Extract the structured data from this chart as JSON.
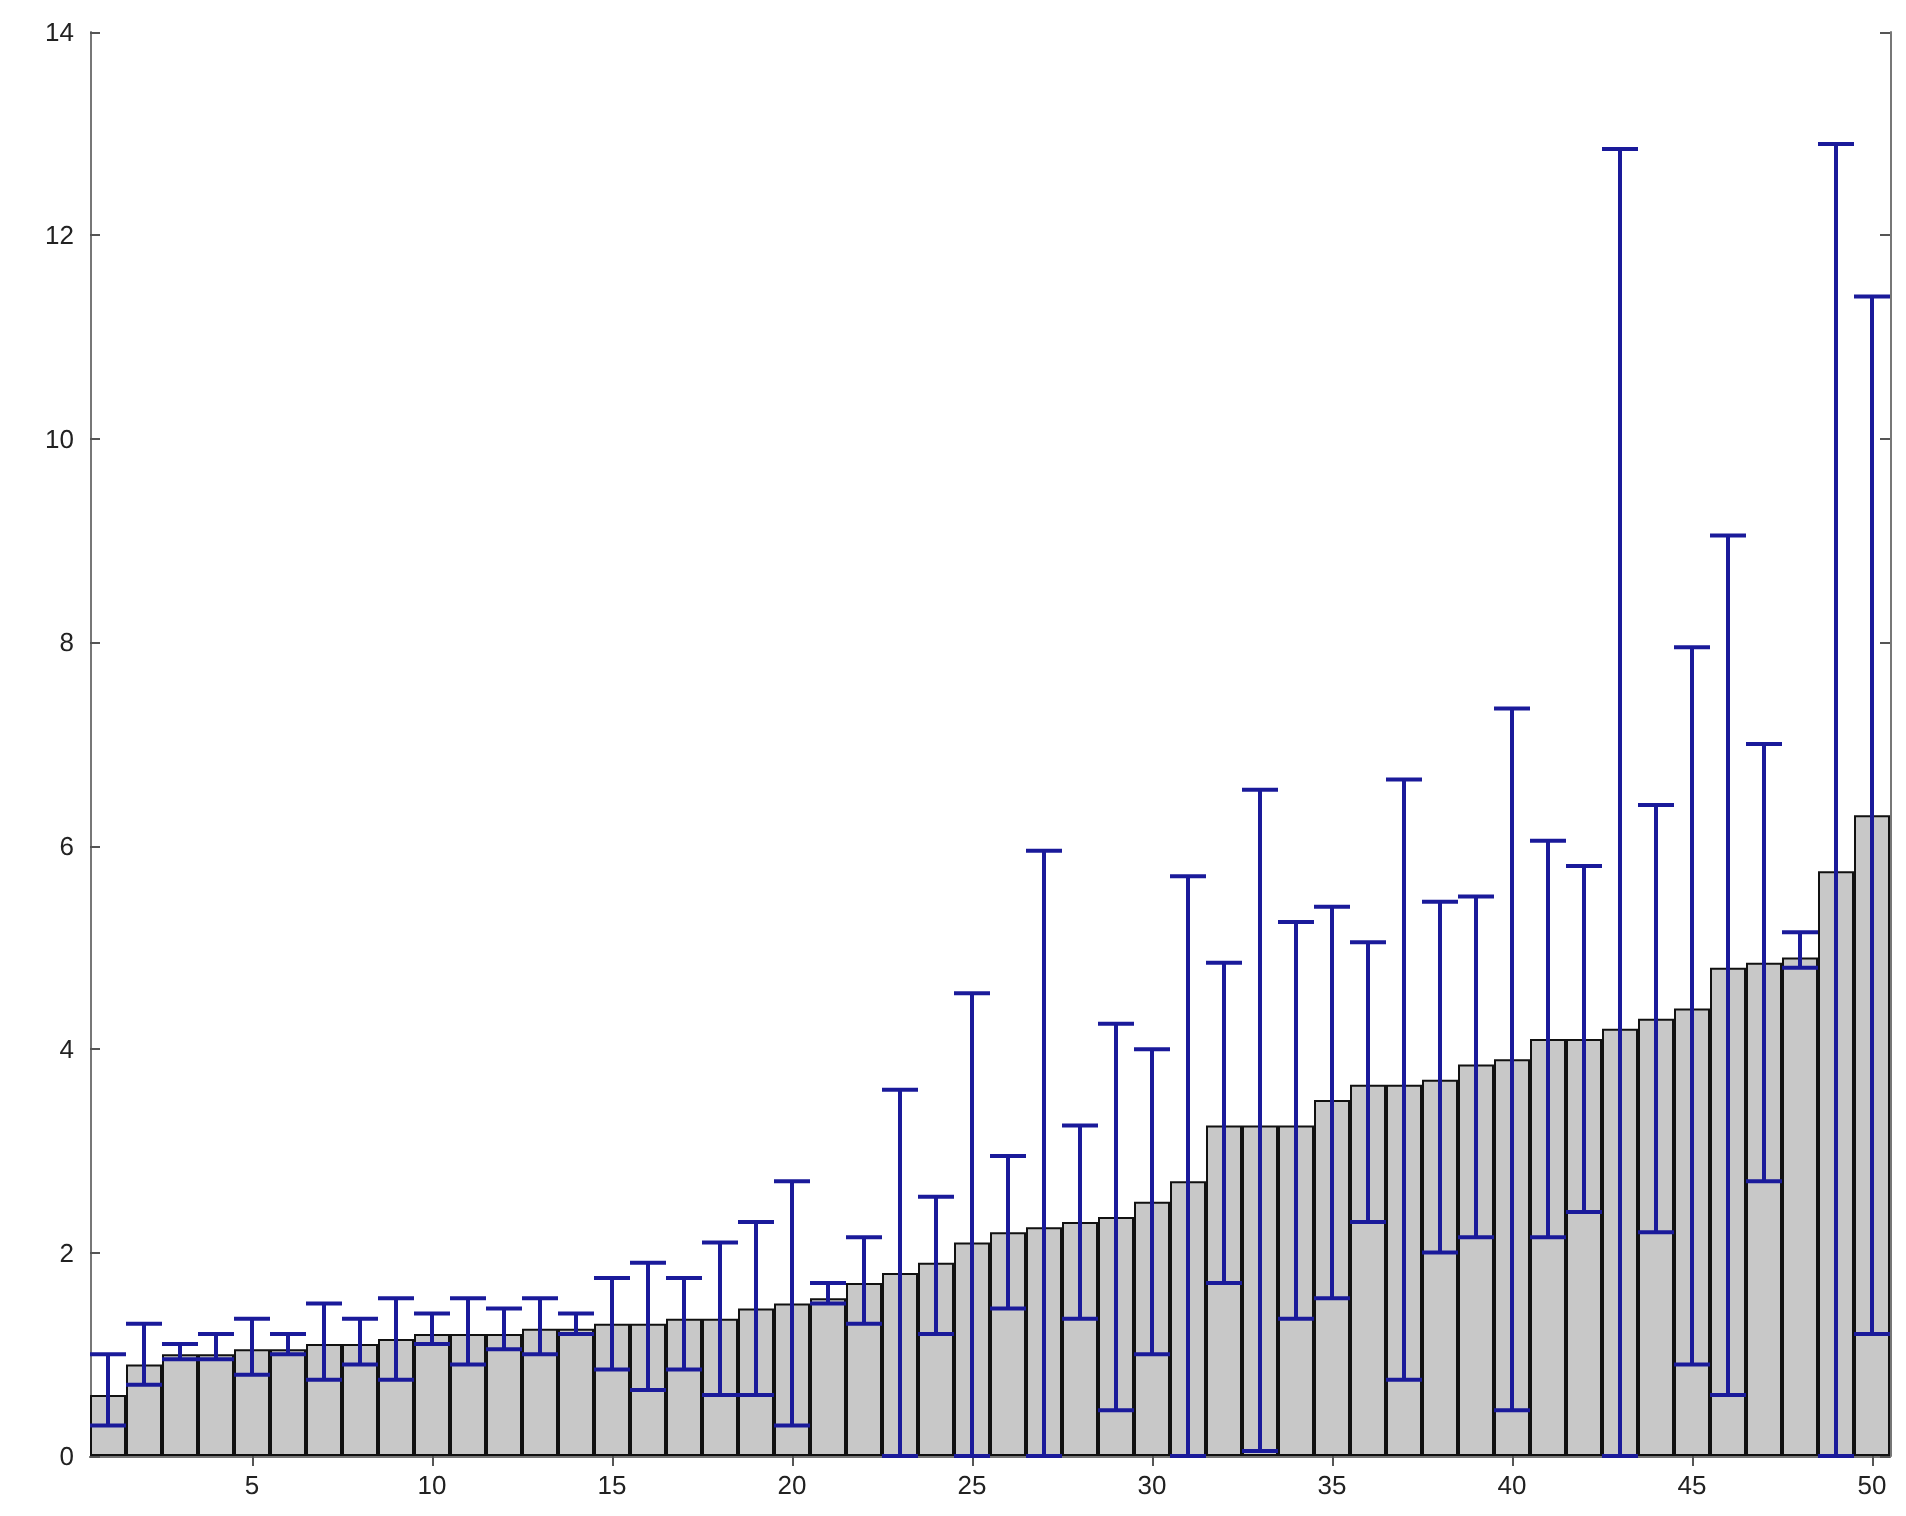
{
  "chart_data": {
    "type": "bar",
    "x": [
      1,
      2,
      3,
      4,
      5,
      6,
      7,
      8,
      9,
      10,
      11,
      12,
      13,
      14,
      15,
      16,
      17,
      18,
      19,
      20,
      21,
      22,
      23,
      24,
      25,
      26,
      27,
      28,
      29,
      30,
      31,
      32,
      33,
      34,
      35,
      36,
      37,
      38,
      39,
      40,
      41,
      42,
      43,
      44,
      45,
      46,
      47,
      48,
      49,
      50
    ],
    "values": [
      0.6,
      0.9,
      1.0,
      1.0,
      1.05,
      1.05,
      1.1,
      1.1,
      1.15,
      1.2,
      1.2,
      1.2,
      1.25,
      1.25,
      1.3,
      1.3,
      1.35,
      1.35,
      1.45,
      1.5,
      1.55,
      1.7,
      1.8,
      1.9,
      2.1,
      2.2,
      2.25,
      2.3,
      2.35,
      2.5,
      2.7,
      3.25,
      3.25,
      3.25,
      3.5,
      3.65,
      3.65,
      3.7,
      3.85,
      3.9,
      4.1,
      4.1,
      4.2,
      4.3,
      4.4,
      4.8,
      4.85,
      4.9,
      5.75,
      6.3
    ],
    "errors": [
      [
        0.3,
        1.0
      ],
      [
        0.7,
        1.3
      ],
      [
        0.95,
        1.1
      ],
      [
        0.95,
        1.2
      ],
      [
        0.8,
        1.35
      ],
      [
        1.0,
        1.2
      ],
      [
        0.75,
        1.5
      ],
      [
        0.9,
        1.35
      ],
      [
        0.75,
        1.55
      ],
      [
        1.1,
        1.4
      ],
      [
        0.9,
        1.55
      ],
      [
        1.05,
        1.45
      ],
      [
        1.0,
        1.55
      ],
      [
        1.2,
        1.4
      ],
      [
        0.85,
        1.75
      ],
      [
        0.65,
        1.9
      ],
      [
        0.85,
        1.75
      ],
      [
        0.6,
        2.1
      ],
      [
        0.6,
        2.3
      ],
      [
        0.3,
        2.7
      ],
      [
        1.5,
        1.7
      ],
      [
        1.3,
        2.15
      ],
      [
        0.0,
        3.6
      ],
      [
        1.2,
        2.55
      ],
      [
        0.0,
        4.55
      ],
      [
        1.45,
        2.95
      ],
      [
        0.0,
        5.95
      ],
      [
        1.35,
        3.25
      ],
      [
        0.45,
        4.25
      ],
      [
        1.0,
        4.0
      ],
      [
        0.0,
        5.7
      ],
      [
        1.7,
        4.85
      ],
      [
        0.05,
        6.55
      ],
      [
        1.35,
        5.25
      ],
      [
        1.55,
        5.4
      ],
      [
        2.3,
        5.05
      ],
      [
        0.75,
        6.65
      ],
      [
        2.0,
        5.45
      ],
      [
        2.15,
        5.5
      ],
      [
        0.45,
        7.35
      ],
      [
        2.15,
        6.05
      ],
      [
        2.4,
        5.8
      ],
      [
        0.0,
        12.85
      ],
      [
        2.2,
        6.4
      ],
      [
        0.9,
        7.95
      ],
      [
        0.6,
        9.05
      ],
      [
        2.7,
        7.0
      ],
      [
        4.8,
        5.15
      ],
      [
        0.0,
        12.9
      ],
      [
        1.2,
        11.4
      ]
    ],
    "color": "#c8c8c8",
    "xlim": [
      0.5,
      50.5
    ],
    "xticks": [
      5,
      10,
      15,
      20,
      25,
      30,
      35,
      40,
      45,
      50
    ],
    "ylim": [
      0,
      14
    ],
    "yticks": [
      0,
      2,
      4,
      6,
      8,
      10,
      12,
      14
    ],
    "grid": false
  }
}
